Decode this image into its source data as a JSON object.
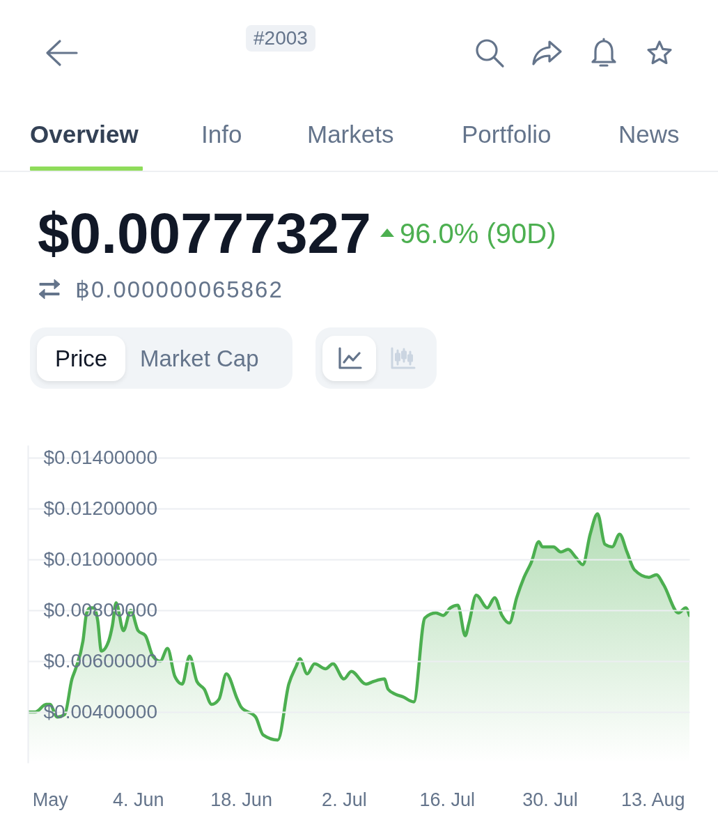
{
  "chart_data": {
    "type": "area",
    "title": "$0.00777327",
    "subtitle": "96.0% (90D)",
    "annotations": [
      "#2003",
      "Overview",
      "Info",
      "Markets",
      "Portfolio",
      "News",
      "฿0.000000065862",
      "Price",
      "Market Cap"
    ],
    "x": [
      "--05-20",
      "--05-21",
      "--05-22T12:00",
      "--05-23",
      "--05-24",
      "--05-25",
      "--05-26",
      "--05-26T12:00",
      "--05-27T12:00",
      "--05-28",
      "--05-28T12:00",
      "--05-29",
      "--05-29T12:00",
      "--05-30",
      "--05-31",
      "--05-31T12:00",
      "--06-01",
      "--06-02",
      "--06-03",
      "--06-04",
      "--06-05",
      "--06-06",
      "--06-07",
      "--06-08",
      "--06-09",
      "--06-10",
      "--06-11",
      "--06-12",
      "--06-13",
      "--06-14",
      "--06-15",
      "--06-16",
      "--06-17T12:00",
      "--06-18",
      "--06-20",
      "--06-21",
      "--06-23",
      "--06-24T12:00",
      "--06-25T12:00",
      "--06-26",
      "--06-27",
      "--06-28",
      "--06-29T12:00",
      "--06-30T12:00",
      "--07-02",
      "--07-03",
      "--07-05",
      "--07-06",
      "--07-07T12:00",
      "--07-08",
      "--07-09",
      "--07-10",
      "--07-11T12:00",
      "--07-13",
      "--07-14T12:00",
      "--07-15T12:00",
      "--07-16T12:00",
      "--07-17T12:00",
      "--07-18T12:00",
      "--07-19",
      "--07-20",
      "--07-21T12:00",
      "--07-22T12:00",
      "--07-23T12:00",
      "--07-24T12:00",
      "--07-25T12:00",
      "--07-26T12:00",
      "--07-27T12:00",
      "--07-28T12:00",
      "--07-29",
      "--07-30T12:00",
      "--07-31T12:00",
      "--08-01T12:00",
      "--08-02T12:00",
      "--08-03T12:00",
      "--08-04T12:00",
      "--08-05T12:00",
      "--08-06T12:00",
      "--08-07T12:00",
      "--08-08T12:00",
      "--08-09T12:00",
      "--08-10T12:00",
      "--08-12T12:00",
      "--08-13T12:00",
      "--08-14T12:00",
      "--08-16T12:00",
      "--08-17T12:00",
      "--08-18"
    ],
    "series": [
      {
        "color": "#4caf50",
        "values": [
          0.004,
          0.004,
          0.0043,
          0.0043,
          0.0038,
          0.0039,
          0.0053,
          0.0057,
          0.0068,
          0.0079,
          0.0081,
          0.0081,
          0.0076,
          0.0064,
          0.0068,
          0.0074,
          0.0083,
          0.0072,
          0.008,
          0.0072,
          0.007,
          0.0062,
          0.006,
          0.0065,
          0.0054,
          0.0051,
          0.0062,
          0.0052,
          0.0049,
          0.0043,
          0.0045,
          0.0055,
          0.0045,
          0.0042,
          0.0038,
          0.0031,
          0.0029,
          0.0051,
          0.0058,
          0.0061,
          0.0055,
          0.0059,
          0.0057,
          0.0059,
          0.0053,
          0.0056,
          0.0051,
          0.0052,
          0.0053,
          0.0049,
          0.0047,
          0.0046,
          0.0044,
          0.0077,
          0.0079,
          0.0078,
          0.0081,
          0.0082,
          0.007,
          0.0075,
          0.0086,
          0.0081,
          0.0085,
          0.0078,
          0.0075,
          0.0085,
          0.0093,
          0.0099,
          0.0107,
          0.0105,
          0.0105,
          0.0103,
          0.0104,
          0.0101,
          0.0098,
          0.011,
          0.0118,
          0.0106,
          0.0105,
          0.011,
          0.0103,
          0.0096,
          0.0093,
          0.0094,
          0.009,
          0.0079,
          0.0081,
          0.0078
        ]
      }
    ],
    "xlim": [
      "--05-20",
      "--08-18"
    ],
    "xticks": [
      {
        "value": "--05-23",
        "label": "May"
      },
      {
        "value": "--06-04",
        "label": "4. Jun"
      },
      {
        "value": "--06-18",
        "label": "18. Jun"
      },
      {
        "value": "--07-02",
        "label": "2. Jul"
      },
      {
        "value": "--07-16",
        "label": "16. Jul"
      },
      {
        "value": "--07-30",
        "label": "30. Jul"
      },
      {
        "value": "--08-13",
        "label": "13. Aug"
      }
    ],
    "ylim": [
      0.002,
      0.0145
    ],
    "yticks": [
      {
        "value": 0.004,
        "label": "$0.00400000"
      },
      {
        "value": 0.006,
        "label": "$0.00600000"
      },
      {
        "value": 0.008,
        "label": "$0.00800000"
      },
      {
        "value": 0.01,
        "label": "$0.01000000"
      },
      {
        "value": 0.012,
        "label": "$0.01200000"
      },
      {
        "value": 0.014,
        "label": "$0.01400000"
      }
    ],
    "grid": "y"
  }
}
